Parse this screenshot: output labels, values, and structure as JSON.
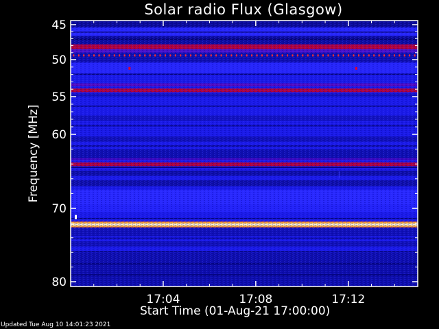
{
  "chart_data": {
    "type": "heatmap",
    "title": "Solar radio Flux (Glasgow)",
    "xlabel": "Start Time (01-Aug-21 17:00:00)",
    "ylabel": "Frequency [MHz]",
    "x_range_minutes": [
      0,
      15
    ],
    "y_range_mhz": [
      44.5,
      80.5
    ],
    "x_ticks": [
      {
        "label": "17:04",
        "minute": 4
      },
      {
        "label": "17:08",
        "minute": 8
      },
      {
        "label": "17:12",
        "minute": 12
      }
    ],
    "y_ticks": [
      {
        "label": "45",
        "mhz": 45
      },
      {
        "label": "50",
        "mhz": 50
      },
      {
        "label": "55",
        "mhz": 55
      },
      {
        "label": "60",
        "mhz": 60
      },
      {
        "label": "70",
        "mhz": 70
      },
      {
        "label": "80",
        "mhz": 80
      }
    ],
    "colors": {
      "background": "#1a1ae6",
      "dark_band": "#0a0a90",
      "mid_band": "#2a2aff",
      "red_band": "#c0002a",
      "hot_band": "#fff6c0",
      "hot_edge": "#ffb000",
      "axis": "#ffffff"
    },
    "grid": false
  },
  "footer": "Updated Tue Aug 10 14:01:23 2021"
}
